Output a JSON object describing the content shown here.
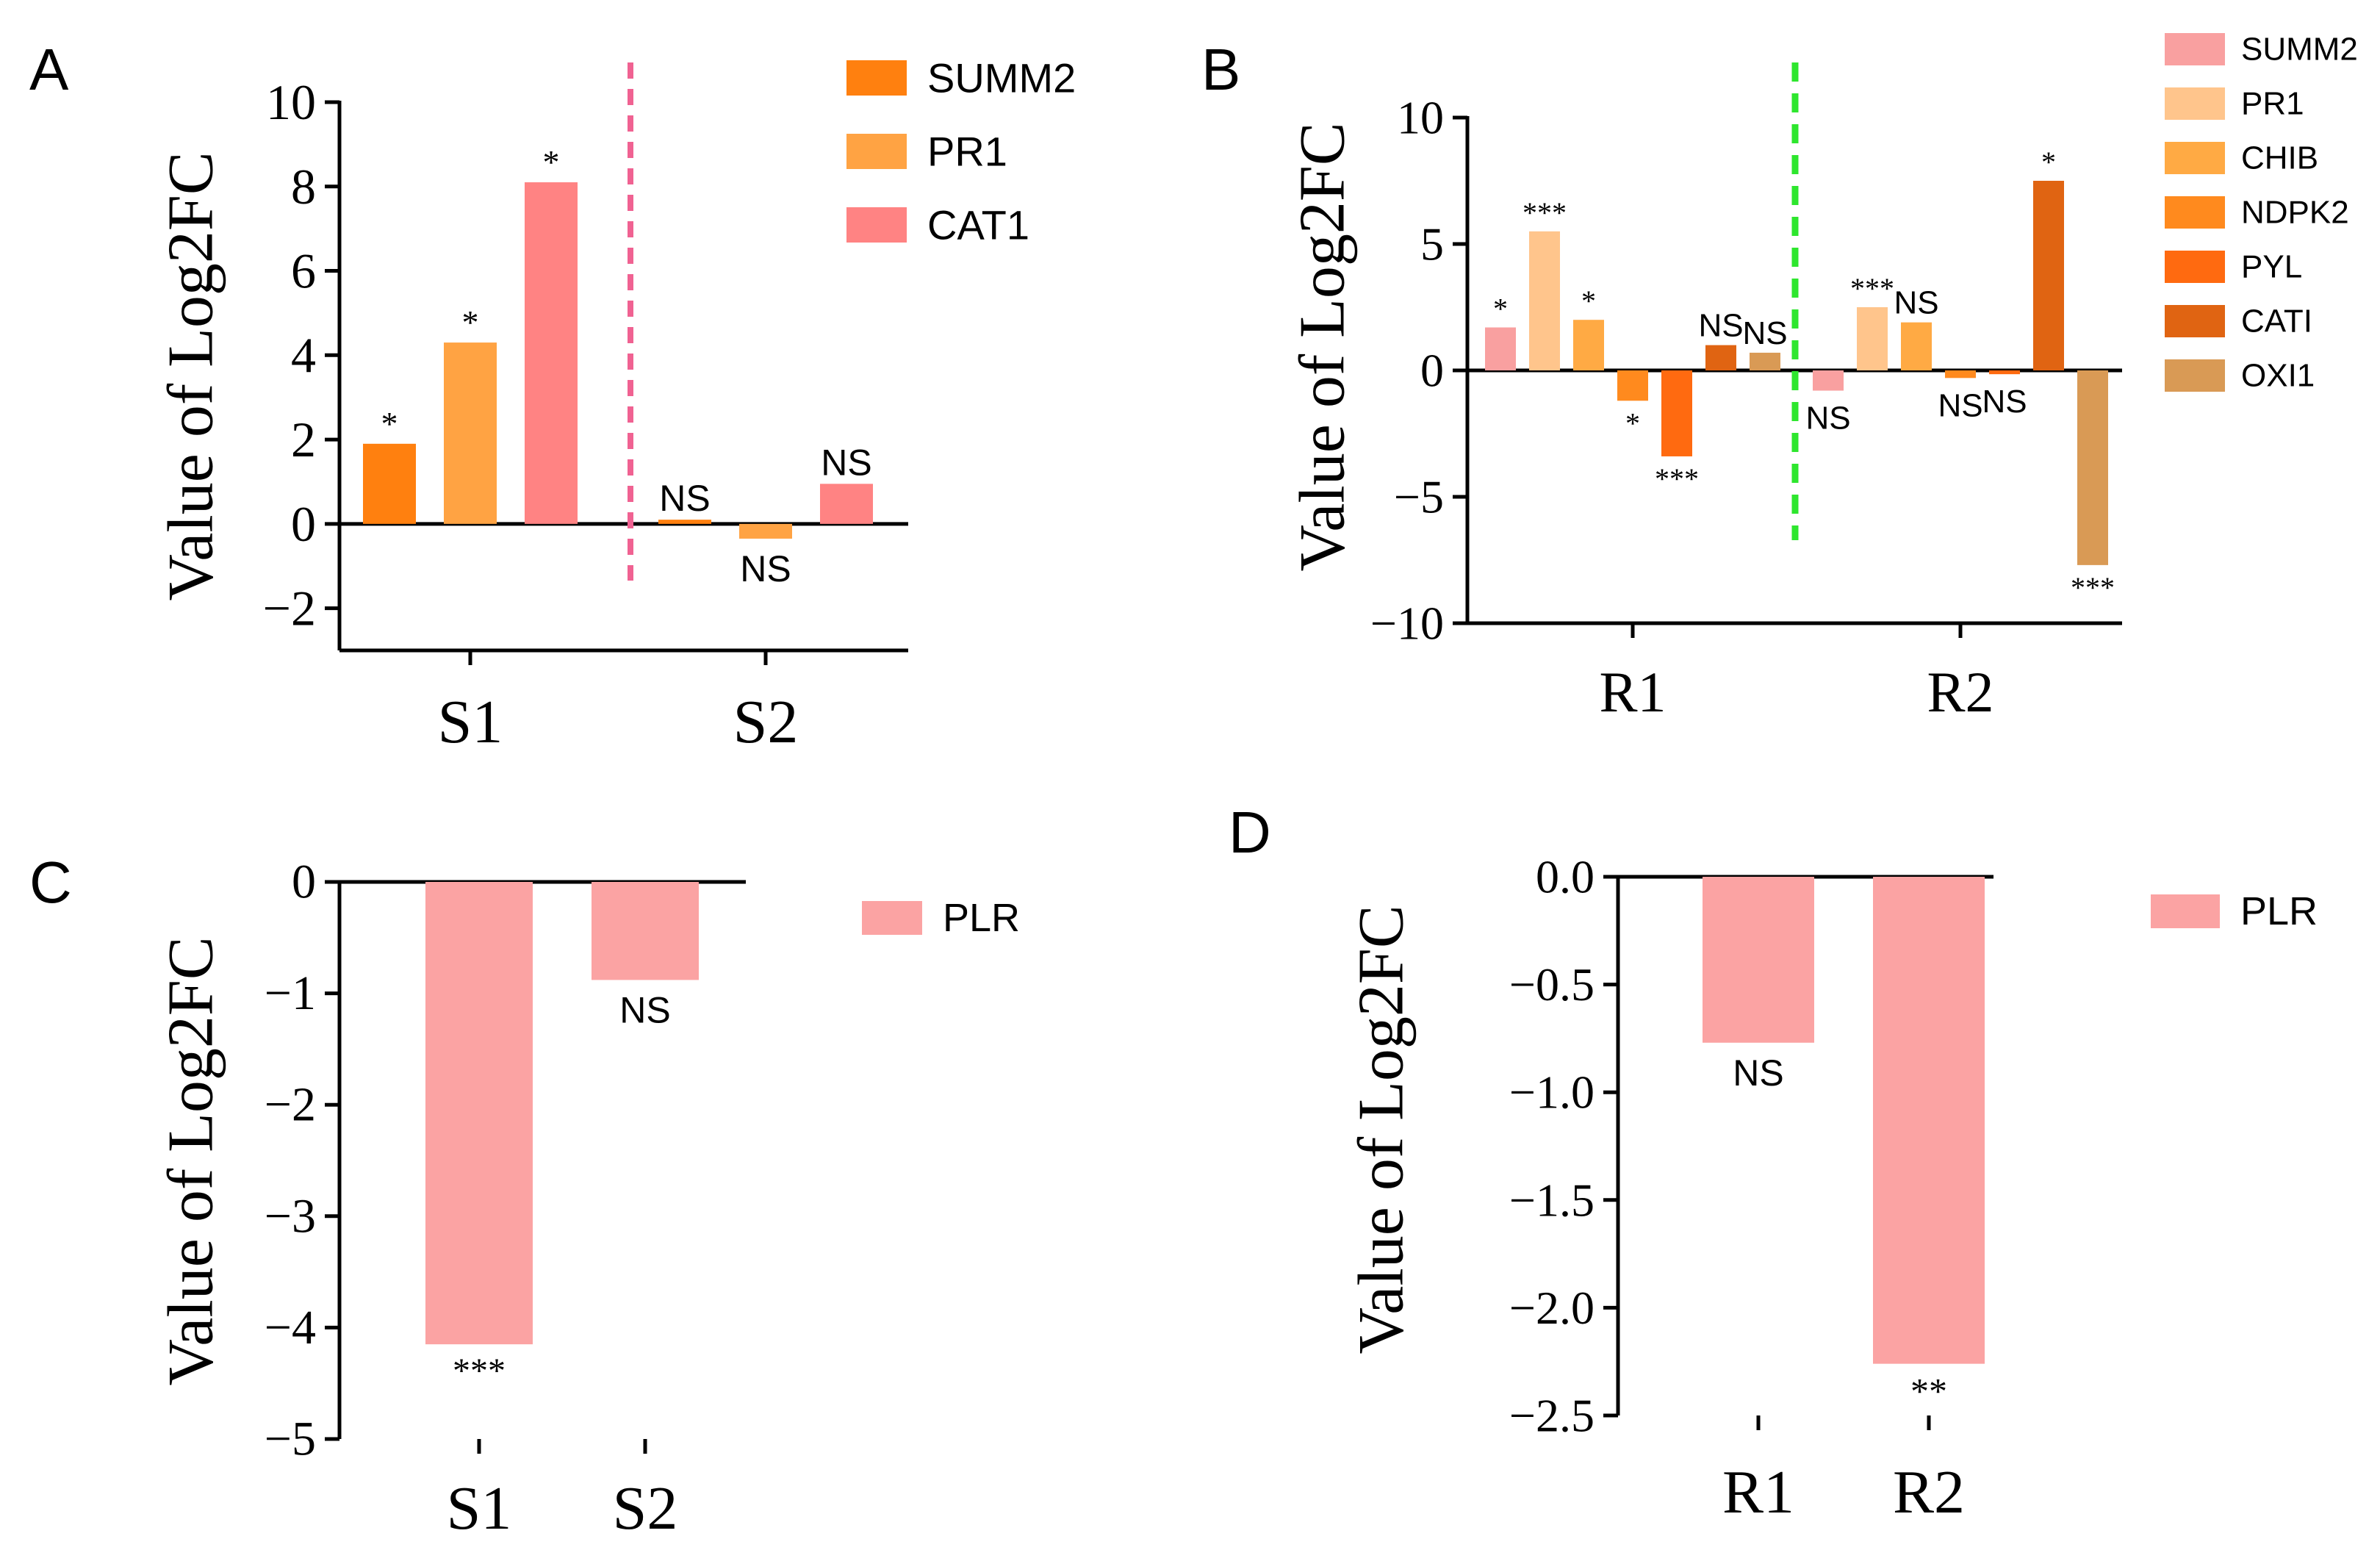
{
  "figure": {
    "panels": [
      {
        "panel_label": "A"
      },
      {
        "panel_label": "B"
      },
      {
        "panel_label": "C"
      },
      {
        "panel_label": "D"
      }
    ]
  },
  "chart_data": [
    {
      "panel": "A",
      "type": "bar",
      "ylabel": "Value  of  Log2FC",
      "ylim": [
        -3,
        10
      ],
      "yticks": [
        -2,
        0,
        2,
        4,
        6,
        8,
        10
      ],
      "ytick_labels": [
        "−2",
        "0",
        "2",
        "4",
        "6",
        "8",
        "10"
      ],
      "categories": [
        "S1",
        "S2"
      ],
      "series": [
        {
          "name": "SUMM2",
          "color": "#ff800f",
          "values": [
            1.9,
            0.1
          ],
          "annotations": [
            "*",
            "NS"
          ]
        },
        {
          "name": "PR1",
          "color": "#ffa343",
          "values": [
            4.3,
            -0.35
          ],
          "annotations": [
            "*",
            "NS"
          ]
        },
        {
          "name": "CAT1",
          "color": "#ff8383",
          "values": [
            8.1,
            0.95
          ],
          "annotations": [
            "*",
            "NS"
          ]
        }
      ],
      "separator_color": "#f06292",
      "legend_position": "top-right"
    },
    {
      "panel": "B",
      "type": "bar",
      "ylabel": "Value  of  Log2FC",
      "ylim": [
        -10,
        10
      ],
      "yticks": [
        -10,
        -5,
        0,
        5,
        10
      ],
      "ytick_labels": [
        "−10",
        "−5",
        "0",
        "5",
        "10"
      ],
      "categories": [
        "R1",
        "R2"
      ],
      "series": [
        {
          "name": "SUMM2",
          "color": "#f9a0a0",
          "values": [
            1.7,
            -0.8
          ],
          "annotations": [
            "*",
            "NS"
          ]
        },
        {
          "name": "PR1",
          "color": "#ffc58c",
          "values": [
            5.5,
            2.5
          ],
          "annotations": [
            "***",
            "***"
          ]
        },
        {
          "name": "CHIB",
          "color": "#ffaa44",
          "values": [
            2.0,
            1.9
          ],
          "annotations": [
            "*",
            "NS"
          ]
        },
        {
          "name": "NDPK2",
          "color": "#ff8a1e",
          "values": [
            -1.2,
            -0.3
          ],
          "annotations": [
            "*",
            "NS"
          ]
        },
        {
          "name": "PYL",
          "color": "#ff6a10",
          "values": [
            -3.4,
            -0.15
          ],
          "annotations": [
            "***",
            "NS"
          ]
        },
        {
          "name": "CATI",
          "color": "#e06412",
          "values": [
            1.0,
            7.5
          ],
          "annotations": [
            "NS",
            "*"
          ]
        },
        {
          "name": "OXI1",
          "color": "#d99a55",
          "values": [
            0.7,
            -7.7
          ],
          "annotations": [
            "NS",
            "***"
          ]
        }
      ],
      "separator_color": "#2ee62e",
      "legend_position": "top-right"
    },
    {
      "panel": "C",
      "type": "bar",
      "ylabel": "Value  of  Log2FC",
      "ylim": [
        -5,
        0
      ],
      "yticks": [
        -5,
        -4,
        -3,
        -2,
        -1,
        0
      ],
      "ytick_labels": [
        "−5",
        "−4",
        "−3",
        "−2",
        "−1",
        "0"
      ],
      "categories": [
        "S1",
        "S2"
      ],
      "series": [
        {
          "name": "PLR",
          "color": "#fba3a3",
          "values": [
            -4.15,
            -0.88
          ],
          "annotations": [
            "***",
            "NS"
          ]
        }
      ],
      "legend_position": "top-right"
    },
    {
      "panel": "D",
      "type": "bar",
      "ylabel": "Value  of  Log2FC",
      "ylim": [
        -2.5,
        0
      ],
      "yticks": [
        -2.5,
        -2.0,
        -1.5,
        -1.0,
        -0.5,
        0.0
      ],
      "ytick_labels": [
        "−2.5",
        "−2.0",
        "−1.5",
        "−1.0",
        "−0.5",
        "0.0"
      ],
      "categories": [
        "R1",
        "R2"
      ],
      "series": [
        {
          "name": "PLR",
          "color": "#fba3a3",
          "values": [
            -0.77,
            -2.26
          ],
          "annotations": [
            "NS",
            "**"
          ]
        }
      ],
      "legend_position": "top-right"
    }
  ]
}
